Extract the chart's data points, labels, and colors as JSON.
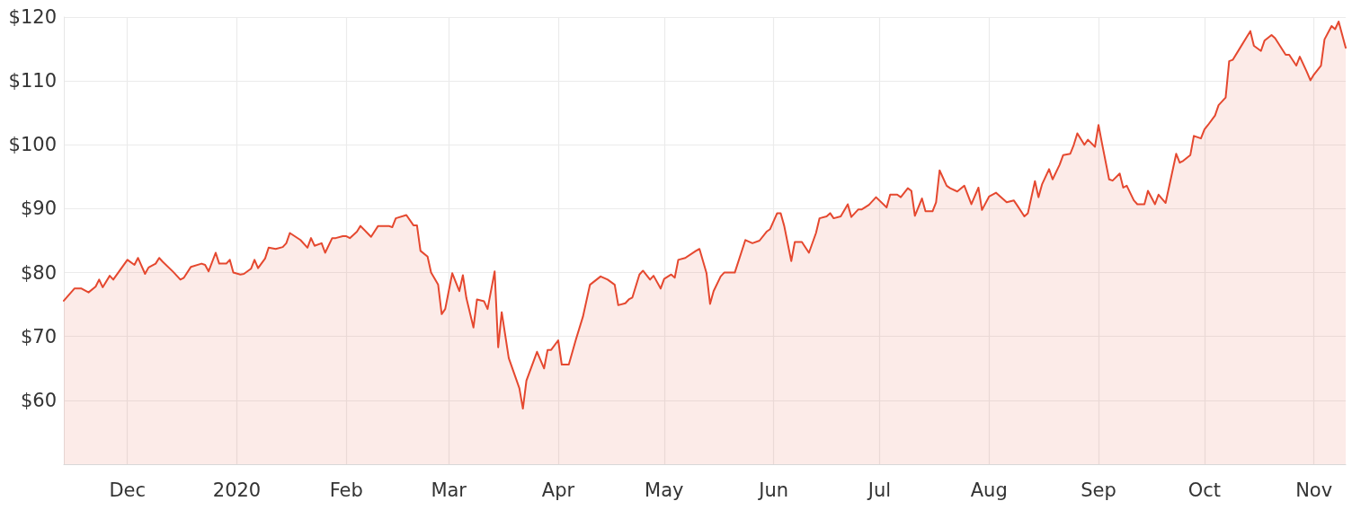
{
  "chart_data": {
    "type": "area",
    "grid": true,
    "marker": "none",
    "line_style": "solid",
    "xlim": [
      "2019-11-13",
      "2020-11-10"
    ],
    "xticks": [
      {
        "value": "2019-12-01",
        "label": "Dec"
      },
      {
        "value": "2020-01-01",
        "label": "2020"
      },
      {
        "value": "2020-02-01",
        "label": "Feb"
      },
      {
        "value": "2020-03-01",
        "label": "Mar"
      },
      {
        "value": "2020-04-01",
        "label": "Apr"
      },
      {
        "value": "2020-05-01",
        "label": "May"
      },
      {
        "value": "2020-06-01",
        "label": "Jun"
      },
      {
        "value": "2020-07-01",
        "label": "Jul"
      },
      {
        "value": "2020-08-01",
        "label": "Aug"
      },
      {
        "value": "2020-09-01",
        "label": "Sep"
      },
      {
        "value": "2020-10-01",
        "label": "Oct"
      },
      {
        "value": "2020-11-01",
        "label": "Nov"
      }
    ],
    "ylim": [
      50,
      120
    ],
    "yticks": [
      {
        "value": 60,
        "label": "$60"
      },
      {
        "value": 70,
        "label": "$70"
      },
      {
        "value": 80,
        "label": "$80"
      },
      {
        "value": 90,
        "label": "$90"
      },
      {
        "value": 100,
        "label": "$100"
      },
      {
        "value": 110,
        "label": "$110"
      },
      {
        "value": 120,
        "label": "$120"
      }
    ],
    "series": [
      {
        "color": "#e5482f",
        "x": [
          "2019-11-13",
          "2019-11-16",
          "2019-11-18",
          "2019-11-20",
          "2019-11-22",
          "2019-11-23",
          "2019-11-24",
          "2019-11-26",
          "2019-11-27",
          "2019-12-01",
          "2019-12-03",
          "2019-12-04",
          "2019-12-06",
          "2019-12-07",
          "2019-12-09",
          "2019-12-10",
          "2019-12-11",
          "2019-12-14",
          "2019-12-16",
          "2019-12-17",
          "2019-12-19",
          "2019-12-22",
          "2019-12-23",
          "2019-12-24",
          "2019-12-26",
          "2019-12-27",
          "2019-12-29",
          "2019-12-30",
          "2019-12-31",
          "2020-01-02",
          "2020-01-03",
          "2020-01-05",
          "2020-01-06",
          "2020-01-07",
          "2020-01-09",
          "2020-01-10",
          "2020-01-12",
          "2020-01-14",
          "2020-01-15",
          "2020-01-16",
          "2020-01-19",
          "2020-01-21",
          "2020-01-22",
          "2020-01-23",
          "2020-01-25",
          "2020-01-26",
          "2020-01-28",
          "2020-01-29",
          "2020-01-31",
          "2020-02-01",
          "2020-02-02",
          "2020-02-04",
          "2020-02-05",
          "2020-02-08",
          "2020-02-10",
          "2020-02-13",
          "2020-02-14",
          "2020-02-15",
          "2020-02-18",
          "2020-02-20",
          "2020-02-21",
          "2020-02-22",
          "2020-02-24",
          "2020-02-25",
          "2020-02-27",
          "2020-02-28",
          "2020-02-29",
          "2020-03-02",
          "2020-03-04",
          "2020-03-05",
          "2020-03-06",
          "2020-03-08",
          "2020-03-09",
          "2020-03-11",
          "2020-03-12",
          "2020-03-14",
          "2020-03-15",
          "2020-03-16",
          "2020-03-18",
          "2020-03-21",
          "2020-03-22",
          "2020-03-23",
          "2020-03-26",
          "2020-03-28",
          "2020-03-29",
          "2020-03-30",
          "2020-04-01",
          "2020-04-02",
          "2020-04-04",
          "2020-04-06",
          "2020-04-08",
          "2020-04-10",
          "2020-04-13",
          "2020-04-15",
          "2020-04-17",
          "2020-04-18",
          "2020-04-20",
          "2020-04-21",
          "2020-04-22",
          "2020-04-24",
          "2020-04-25",
          "2020-04-27",
          "2020-04-28",
          "2020-04-30",
          "2020-05-01",
          "2020-05-03",
          "2020-05-04",
          "2020-05-05",
          "2020-05-07",
          "2020-05-10",
          "2020-05-11",
          "2020-05-13",
          "2020-05-14",
          "2020-05-15",
          "2020-05-17",
          "2020-05-18",
          "2020-05-21",
          "2020-05-24",
          "2020-05-26",
          "2020-05-28",
          "2020-05-30",
          "2020-05-31",
          "2020-06-02",
          "2020-06-03",
          "2020-06-04",
          "2020-06-06",
          "2020-06-07",
          "2020-06-09",
          "2020-06-11",
          "2020-06-13",
          "2020-06-14",
          "2020-06-16",
          "2020-06-17",
          "2020-06-18",
          "2020-06-20",
          "2020-06-22",
          "2020-06-23",
          "2020-06-25",
          "2020-06-26",
          "2020-06-28",
          "2020-06-30",
          "2020-07-03",
          "2020-07-04",
          "2020-07-06",
          "2020-07-07",
          "2020-07-09",
          "2020-07-10",
          "2020-07-11",
          "2020-07-13",
          "2020-07-14",
          "2020-07-16",
          "2020-07-17",
          "2020-07-18",
          "2020-07-20",
          "2020-07-21",
          "2020-07-23",
          "2020-07-25",
          "2020-07-27",
          "2020-07-29",
          "2020-07-30",
          "2020-08-01",
          "2020-08-03",
          "2020-08-05",
          "2020-08-06",
          "2020-08-08",
          "2020-08-09",
          "2020-08-11",
          "2020-08-12",
          "2020-08-14",
          "2020-08-15",
          "2020-08-16",
          "2020-08-18",
          "2020-08-19",
          "2020-08-21",
          "2020-08-22",
          "2020-08-24",
          "2020-08-25",
          "2020-08-26",
          "2020-08-28",
          "2020-08-29",
          "2020-08-31",
          "2020-09-01",
          "2020-09-02",
          "2020-09-04",
          "2020-09-05",
          "2020-09-07",
          "2020-09-08",
          "2020-09-09",
          "2020-09-11",
          "2020-09-12",
          "2020-09-14",
          "2020-09-15",
          "2020-09-17",
          "2020-09-18",
          "2020-09-20",
          "2020-09-23",
          "2020-09-24",
          "2020-09-25",
          "2020-09-27",
          "2020-09-28",
          "2020-09-30",
          "2020-10-01",
          "2020-10-02",
          "2020-10-04",
          "2020-10-05",
          "2020-10-07",
          "2020-10-08",
          "2020-10-09",
          "2020-10-11",
          "2020-10-13",
          "2020-10-14",
          "2020-10-15",
          "2020-10-17",
          "2020-10-18",
          "2020-10-20",
          "2020-10-21",
          "2020-10-24",
          "2020-10-25",
          "2020-10-27",
          "2020-10-28",
          "2020-10-30",
          "2020-10-31",
          "2020-11-01",
          "2020-11-03",
          "2020-11-04",
          "2020-11-06",
          "2020-11-07",
          "2020-11-08",
          "2020-11-10"
        ],
        "values": [
          75.6,
          77.5,
          77.5,
          76.9,
          77.8,
          78.9,
          77.7,
          79.5,
          78.9,
          82.0,
          81.2,
          82.3,
          79.8,
          80.8,
          81.4,
          82.3,
          81.7,
          80.1,
          78.9,
          79.2,
          80.9,
          81.4,
          81.2,
          80.2,
          83.1,
          81.4,
          81.4,
          82.0,
          80.0,
          79.7,
          79.8,
          80.6,
          82.0,
          80.7,
          82.2,
          83.9,
          83.7,
          84.0,
          84.6,
          86.2,
          85.1,
          83.9,
          85.4,
          84.2,
          84.6,
          83.1,
          85.4,
          85.4,
          85.7,
          85.7,
          85.4,
          86.4,
          87.3,
          85.6,
          87.3,
          87.3,
          87.1,
          88.5,
          89.0,
          87.4,
          87.4,
          83.4,
          82.5,
          80.0,
          78.1,
          73.5,
          74.3,
          79.9,
          77.1,
          79.6,
          76.0,
          71.4,
          75.8,
          75.5,
          74.3,
          80.2,
          68.3,
          73.8,
          66.6,
          61.9,
          58.7,
          63.1,
          67.6,
          65.0,
          67.9,
          67.9,
          69.4,
          65.6,
          65.6,
          69.5,
          73.1,
          78.1,
          79.4,
          78.9,
          78.1,
          74.9,
          75.2,
          75.8,
          76.1,
          79.7,
          80.3,
          78.9,
          79.5,
          77.5,
          79.0,
          79.7,
          79.2,
          82.0,
          82.3,
          83.4,
          83.7,
          79.9,
          75.1,
          77.1,
          79.4,
          80.0,
          80.0,
          85.1,
          84.6,
          85.0,
          86.4,
          86.8,
          89.3,
          89.3,
          87.3,
          81.8,
          84.8,
          84.8,
          83.1,
          86.2,
          88.5,
          88.8,
          89.3,
          88.5,
          88.8,
          90.7,
          88.7,
          89.9,
          89.9,
          90.6,
          91.8,
          90.2,
          92.2,
          92.2,
          91.8,
          93.2,
          92.8,
          88.9,
          91.6,
          89.6,
          89.6,
          91.0,
          96.0,
          93.6,
          93.2,
          92.7,
          93.6,
          90.7,
          93.3,
          89.8,
          91.9,
          92.5,
          91.5,
          91.0,
          91.3,
          90.5,
          88.8,
          89.3,
          94.3,
          91.8,
          93.8,
          96.2,
          94.6,
          96.9,
          98.4,
          98.6,
          100.0,
          101.8,
          100.0,
          100.8,
          99.7,
          103.1,
          100.2,
          94.6,
          94.4,
          95.5,
          93.3,
          93.6,
          91.3,
          90.7,
          90.7,
          92.8,
          90.7,
          92.2,
          90.9,
          98.6,
          97.2,
          97.5,
          98.4,
          101.4,
          101.0,
          102.4,
          103.1,
          104.6,
          106.2,
          107.4,
          113.1,
          113.3,
          115.1,
          116.9,
          117.8,
          115.5,
          114.7,
          116.3,
          117.2,
          116.7,
          114.1,
          114.1,
          112.4,
          113.8,
          111.4,
          110.1,
          111.0,
          112.4,
          116.5,
          118.6,
          118.1,
          119.3,
          115.2
        ]
      }
    ]
  }
}
